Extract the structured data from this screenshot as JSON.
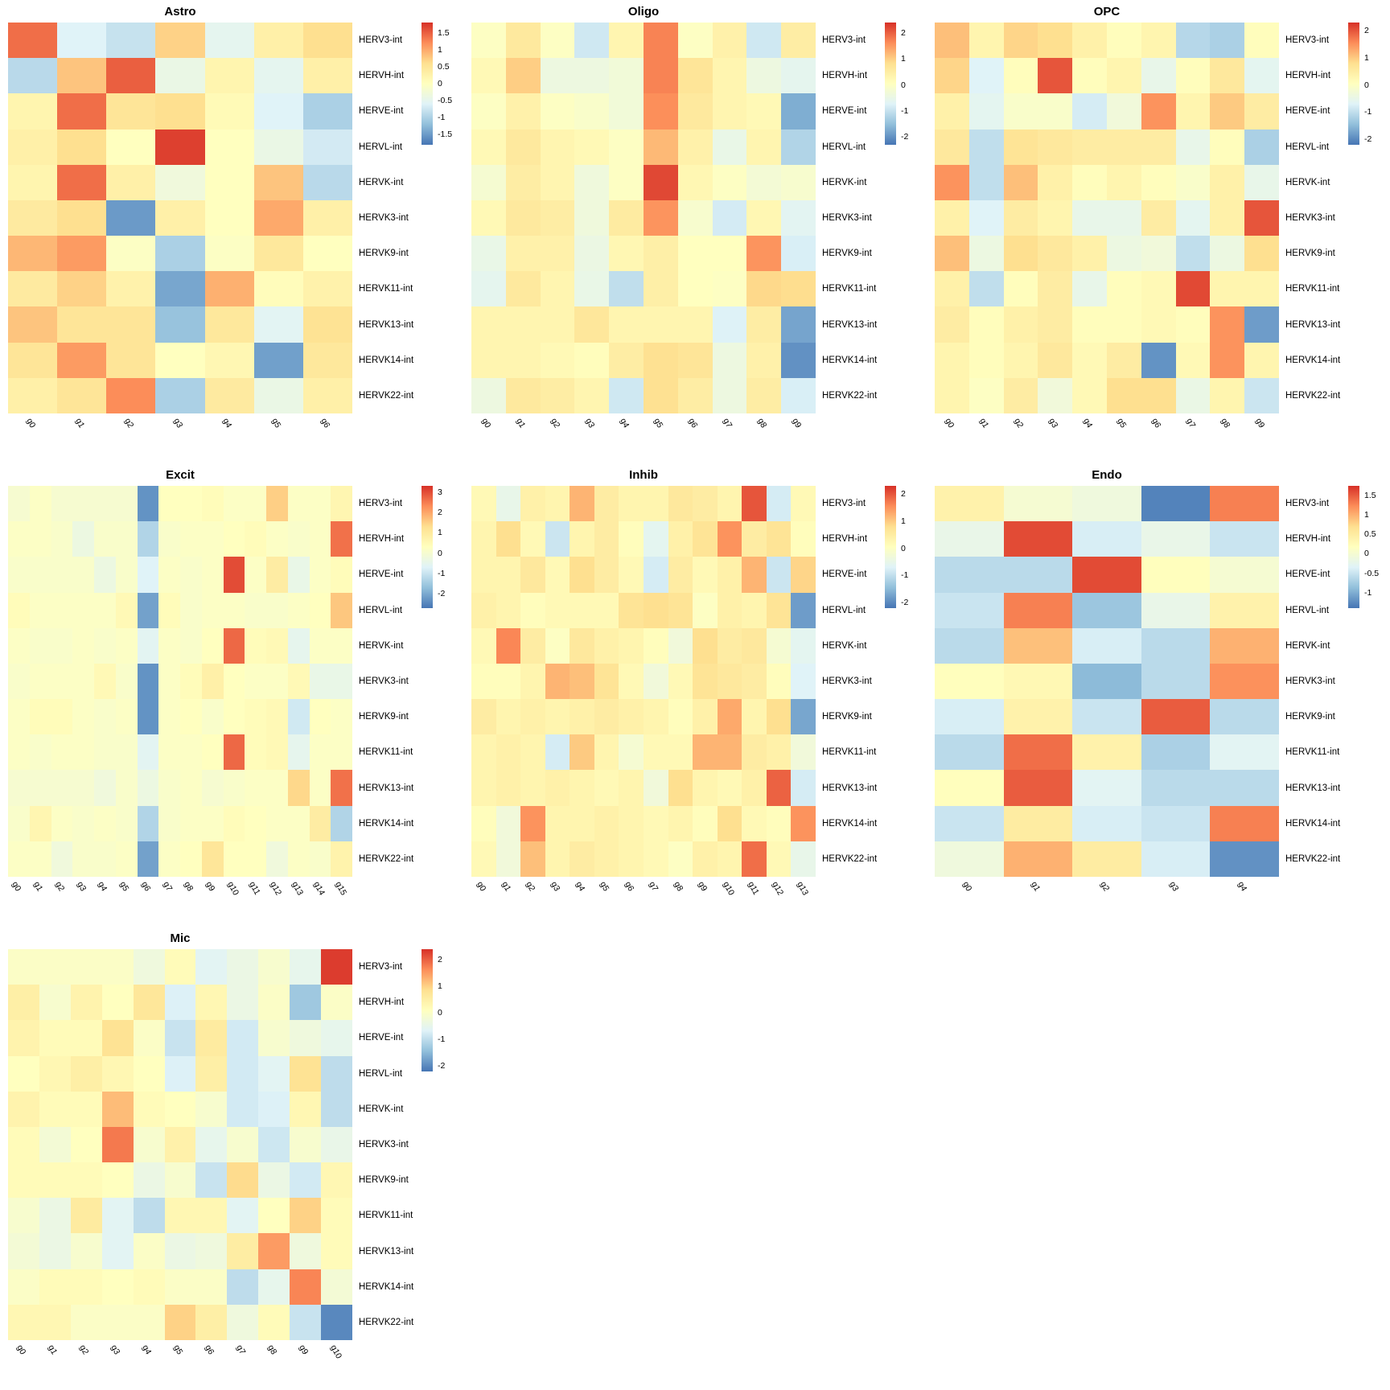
{
  "page": {
    "background": "#ffffff"
  },
  "colormap": {
    "name": "RdYlBu-reversed",
    "low_to_high_stops": [
      "#4575b4",
      "#91bfdb",
      "#e0f3f8",
      "#ffffbf",
      "#fee090",
      "#fc8d59",
      "#d73027"
    ]
  },
  "chart_data": [
    {
      "type": "heatmap",
      "title": "Astro",
      "columns": [
        "g0",
        "g1",
        "g2",
        "g3",
        "g4",
        "g5",
        "g6"
      ],
      "rows": [
        "HERV3-int",
        "HERVH-int",
        "HERVE-int",
        "HERVL-int",
        "HERVK-int",
        "HERVK3-int",
        "HERVK9-int",
        "HERVK11-int",
        "HERVK13-int",
        "HERVK14-int",
        "HERVK22-int"
      ],
      "legend_ticks": [
        "1.5",
        "1",
        "0.5",
        "0",
        "-0.5",
        "-1",
        "-1.5"
      ],
      "vmin": -1.8,
      "vmax": 1.8,
      "values": [
        [
          1.4,
          -0.6,
          -0.8,
          0.7,
          -0.5,
          0.3,
          0.6
        ],
        [
          -0.9,
          0.8,
          1.5,
          -0.4,
          0.2,
          -0.5,
          0.3
        ],
        [
          0.2,
          1.4,
          0.5,
          0.6,
          0.1,
          -0.6,
          -1.0
        ],
        [
          0.3,
          0.6,
          0.0,
          1.7,
          0.0,
          -0.4,
          -0.7
        ],
        [
          0.2,
          1.4,
          0.3,
          -0.3,
          0.0,
          0.8,
          -0.9
        ],
        [
          0.4,
          0.6,
          -1.5,
          0.3,
          0.0,
          1.0,
          0.3
        ],
        [
          0.9,
          1.1,
          -0.05,
          -1.0,
          -0.05,
          0.45,
          0.0
        ],
        [
          0.4,
          0.7,
          0.25,
          -1.4,
          0.95,
          0.05,
          0.25
        ],
        [
          0.8,
          0.5,
          0.5,
          -1.15,
          0.45,
          -0.55,
          0.55
        ],
        [
          0.5,
          1.1,
          0.5,
          0.0,
          0.15,
          -1.45,
          0.45
        ],
        [
          0.3,
          0.5,
          1.2,
          -1.0,
          0.4,
          -0.4,
          0.3
        ]
      ]
    },
    {
      "type": "heatmap",
      "title": "Oligo",
      "columns": [
        "g0",
        "g1",
        "g2",
        "g3",
        "g4",
        "g5",
        "g6",
        "g7",
        "g8",
        "g9"
      ],
      "rows": [
        "HERV3-int",
        "HERVH-int",
        "HERVE-int",
        "HERVL-int",
        "HERVK-int",
        "HERVK3-int",
        "HERVK9-int",
        "HERVK11-int",
        "HERVK13-int",
        "HERVK14-int",
        "HERVK22-int"
      ],
      "legend_ticks": [
        "2",
        "1",
        "0",
        "-1",
        "-2"
      ],
      "vmin": -2.3,
      "vmax": 2.4,
      "values": [
        [
          0.0,
          0.6,
          0.0,
          -0.9,
          0.3,
          1.7,
          0.0,
          0.4,
          -0.9,
          0.5
        ],
        [
          0.2,
          1.0,
          -0.4,
          -0.4,
          -0.3,
          1.7,
          0.7,
          0.3,
          -0.4,
          -0.6
        ],
        [
          0.0,
          0.4,
          0.0,
          -0.1,
          -0.3,
          1.6,
          0.6,
          0.3,
          0.2,
          -1.7
        ],
        [
          0.2,
          0.6,
          0.3,
          0.2,
          0.0,
          1.2,
          0.4,
          -0.5,
          0.3,
          -1.2
        ],
        [
          -0.2,
          0.5,
          0.3,
          -0.35,
          0.0,
          2.2,
          0.25,
          0.0,
          -0.25,
          -0.15
        ],
        [
          0.2,
          0.6,
          0.5,
          -0.35,
          0.55,
          1.55,
          -0.15,
          -0.85,
          0.25,
          -0.65
        ],
        [
          -0.5,
          0.4,
          0.4,
          -0.45,
          0.25,
          0.45,
          0.05,
          0.05,
          1.55,
          -0.8
        ],
        [
          -0.6,
          0.6,
          0.3,
          -0.5,
          -1.05,
          0.45,
          0.05,
          0.0,
          0.9,
          0.85
        ],
        [
          0.3,
          0.3,
          0.3,
          0.65,
          0.3,
          0.3,
          0.3,
          -0.75,
          0.5,
          -1.8
        ],
        [
          0.3,
          0.3,
          0.2,
          0.1,
          0.5,
          0.8,
          0.7,
          -0.4,
          0.4,
          -2.0
        ],
        [
          -0.4,
          0.6,
          0.5,
          0.3,
          -0.9,
          0.8,
          0.5,
          -0.4,
          0.5,
          -0.8
        ]
      ]
    },
    {
      "type": "heatmap",
      "title": "OPC",
      "columns": [
        "g0",
        "g1",
        "g2",
        "g3",
        "g4",
        "g5",
        "g6",
        "g7",
        "g8",
        "g9"
      ],
      "rows": [
        "HERV3-int",
        "HERVH-int",
        "HERVE-int",
        "HERVL-int",
        "HERVK-int",
        "HERVK3-int",
        "HERVK9-int",
        "HERVK11-int",
        "HERVK13-int",
        "HERVK14-int",
        "HERVK22-int"
      ],
      "legend_ticks": [
        "2",
        "1",
        "0",
        "-1",
        "-2"
      ],
      "vmin": -2.2,
      "vmax": 2.3,
      "values": [
        [
          1.1,
          0.3,
          0.9,
          0.8,
          0.4,
          0.1,
          0.3,
          -1.1,
          -1.2,
          0.1
        ],
        [
          0.9,
          -0.7,
          0.1,
          2.0,
          0.1,
          0.3,
          -0.5,
          0.1,
          0.6,
          -0.6
        ],
        [
          0.4,
          -0.6,
          -0.1,
          -0.1,
          -0.8,
          -0.3,
          1.5,
          0.3,
          1.0,
          0.5
        ],
        [
          0.6,
          -1.0,
          0.7,
          0.6,
          0.5,
          0.5,
          0.5,
          -0.5,
          0.1,
          -1.2
        ],
        [
          1.5,
          -1.0,
          1.1,
          0.4,
          0.1,
          0.3,
          0.1,
          -0.1,
          0.4,
          -0.5
        ],
        [
          0.4,
          -0.7,
          0.5,
          0.3,
          -0.5,
          -0.5,
          0.5,
          -0.6,
          0.4,
          2.0
        ],
        [
          1.1,
          -0.4,
          0.8,
          0.6,
          0.4,
          -0.4,
          -0.3,
          -1.0,
          -0.4,
          0.8
        ],
        [
          0.4,
          -1.0,
          0.1,
          0.5,
          -0.5,
          0.1,
          0.2,
          2.1,
          0.3,
          0.3
        ],
        [
          0.5,
          0.1,
          0.4,
          0.5,
          0.1,
          0.1,
          0.2,
          0.1,
          1.5,
          -1.8
        ],
        [
          0.3,
          0.1,
          0.3,
          0.6,
          0.2,
          0.5,
          -1.9,
          0.2,
          1.5,
          0.3
        ],
        [
          0.3,
          0.0,
          0.5,
          -0.3,
          0.2,
          0.8,
          0.8,
          -0.45,
          0.3,
          -0.9
        ]
      ]
    },
    {
      "type": "heatmap",
      "title": "Excit",
      "columns": [
        "g0",
        "g1",
        "g2",
        "g3",
        "g4",
        "g5",
        "g6",
        "g7",
        "g8",
        "g9",
        "g10",
        "g11",
        "g12",
        "g13",
        "g14",
        "g15"
      ],
      "rows": [
        "HERV3-int",
        "HERVH-int",
        "HERVE-int",
        "HERVL-int",
        "HERVK-int",
        "HERVK3-int",
        "HERVK9-int",
        "HERVK11-int",
        "HERVK13-int",
        "HERVK14-int",
        "HERVK22-int"
      ],
      "legend_ticks": [
        "3",
        "2",
        "1",
        "0",
        "-1",
        "-2"
      ],
      "vmin": -2.7,
      "vmax": 3.3,
      "values": [
        [
          0.0,
          0.2,
          0.0,
          0.0,
          0.0,
          0.0,
          -2.3,
          0.3,
          0.3,
          0.4,
          0.2,
          0.2,
          1.5,
          0.2,
          0.2,
          0.6
        ],
        [
          0.2,
          0.2,
          0.1,
          -0.3,
          0.1,
          0.1,
          -1.3,
          0.1,
          0.2,
          0.2,
          0.3,
          0.4,
          0.2,
          0.1,
          0.2,
          2.6
        ],
        [
          0.1,
          0.1,
          0.1,
          0.1,
          -0.3,
          0.1,
          -0.7,
          0.2,
          0.1,
          0.2,
          3.0,
          0.2,
          0.9,
          -0.4,
          0.2,
          0.4
        ],
        [
          0.4,
          0.2,
          0.2,
          0.2,
          0.2,
          0.5,
          -2.1,
          0.4,
          0.1,
          0.2,
          0.2,
          0.1,
          0.1,
          0.2,
          0.3,
          1.6
        ],
        [
          0.2,
          0.1,
          0.1,
          0.2,
          0.1,
          0.2,
          -0.6,
          0.2,
          0.1,
          0.3,
          2.7,
          0.4,
          0.5,
          -0.5,
          0.2,
          0.2
        ],
        [
          0.1,
          0.2,
          0.2,
          0.2,
          0.5,
          0.1,
          -2.3,
          0.2,
          0.4,
          0.8,
          0.3,
          0.2,
          0.2,
          0.5,
          -0.4,
          -0.4
        ],
        [
          0.2,
          0.4,
          0.4,
          0.2,
          0.1,
          0.2,
          -2.3,
          0.2,
          0.3,
          0.1,
          0.3,
          0.4,
          0.5,
          -0.9,
          0.3,
          0.2
        ],
        [
          0.2,
          0.1,
          0.2,
          0.2,
          0.1,
          0.1,
          -0.6,
          0.2,
          0.2,
          0.3,
          2.7,
          0.4,
          0.5,
          -0.5,
          0.2,
          0.2
        ],
        [
          0.0,
          0.0,
          0.0,
          0.0,
          -0.2,
          0.1,
          -0.3,
          0.1,
          0.2,
          0.0,
          0.1,
          0.2,
          0.2,
          1.4,
          0.2,
          2.6
        ],
        [
          0.1,
          0.6,
          0.2,
          0.1,
          0.2,
          0.1,
          -1.3,
          0.1,
          0.2,
          0.2,
          0.4,
          0.3,
          0.2,
          0.2,
          0.9,
          -1.3
        ],
        [
          0.2,
          0.2,
          -0.2,
          0.1,
          0.1,
          0.2,
          -2.1,
          0.2,
          0.3,
          1.1,
          0.3,
          0.3,
          -0.2,
          0.2,
          0.1,
          0.7
        ]
      ]
    },
    {
      "type": "heatmap",
      "title": "Inhib",
      "columns": [
        "g0",
        "g1",
        "g2",
        "g3",
        "g4",
        "g5",
        "g6",
        "g7",
        "g8",
        "g9",
        "g10",
        "g11",
        "g12",
        "g13"
      ],
      "rows": [
        "HERV3-int",
        "HERVH-int",
        "HERVE-int",
        "HERVL-int",
        "HERVK-int",
        "HERVK3-int",
        "HERVK9-int",
        "HERVK11-int",
        "HERVK13-int",
        "HERVK14-int",
        "HERVK22-int"
      ],
      "legend_ticks": [
        "2",
        "1",
        "0",
        "-1",
        "-2"
      ],
      "vmin": -2.2,
      "vmax": 2.3,
      "values": [
        [
          0.2,
          -0.5,
          0.4,
          0.3,
          1.2,
          0.5,
          0.3,
          0.3,
          0.6,
          0.5,
          0.3,
          2.0,
          -0.8,
          0.2
        ],
        [
          0.3,
          0.8,
          0.2,
          -0.9,
          0.3,
          0.5,
          0.1,
          -0.6,
          0.4,
          0.7,
          1.5,
          0.5,
          0.7,
          0.1
        ],
        [
          0.3,
          0.3,
          0.6,
          0.2,
          0.8,
          0.5,
          0.2,
          -0.8,
          0.5,
          0.2,
          0.4,
          1.2,
          -0.9,
          0.9
        ],
        [
          0.4,
          0.3,
          0.1,
          0.2,
          0.2,
          0.2,
          0.7,
          0.8,
          0.7,
          0.0,
          0.4,
          0.3,
          0.7,
          -1.8
        ],
        [
          0.2,
          1.6,
          0.5,
          0.0,
          0.6,
          0.4,
          0.3,
          0.1,
          -0.3,
          0.8,
          0.5,
          0.6,
          -0.2,
          -0.6
        ],
        [
          0.1,
          0.1,
          0.3,
          1.2,
          1.1,
          0.7,
          0.2,
          -0.3,
          0.2,
          0.7,
          0.6,
          0.5,
          0.1,
          -0.7
        ],
        [
          0.5,
          0.3,
          0.4,
          0.3,
          0.4,
          0.5,
          0.4,
          0.3,
          0.1,
          0.4,
          1.3,
          0.3,
          0.8,
          -1.7
        ],
        [
          0.3,
          0.4,
          0.3,
          -0.8,
          1.0,
          0.3,
          -0.2,
          0.2,
          0.2,
          1.2,
          1.2,
          0.5,
          0.4,
          -0.3
        ],
        [
          0.3,
          0.4,
          0.3,
          0.4,
          0.3,
          0.2,
          0.3,
          -0.3,
          0.8,
          0.3,
          0.2,
          0.4,
          1.9,
          -0.8
        ],
        [
          0.1,
          -0.3,
          1.5,
          0.3,
          0.3,
          0.4,
          0.3,
          0.2,
          0.3,
          0.1,
          0.8,
          0.2,
          0.1,
          1.5
        ],
        [
          0.2,
          -0.3,
          1.1,
          0.3,
          0.5,
          0.4,
          0.3,
          0.2,
          0.0,
          0.4,
          0.3,
          1.8,
          0.2,
          -0.5
        ]
      ]
    },
    {
      "type": "heatmap",
      "title": "Endo",
      "columns": [
        "g0",
        "g1",
        "g2",
        "g3",
        "g4"
      ],
      "rows": [
        "HERV3-int",
        "HERVH-int",
        "HERVE-int",
        "HERVL-int",
        "HERVK-int",
        "HERVK3-int",
        "HERVK9-int",
        "HERVK11-int",
        "HERVK13-int",
        "HERVK14-int",
        "HERVK22-int"
      ],
      "legend_ticks": [
        "1.5",
        "1",
        "0.5",
        "0",
        "-0.5",
        "-1"
      ],
      "vmin": -1.4,
      "vmax": 1.75,
      "values": [
        [
          0.4,
          0.0,
          -0.1,
          -1.3,
          1.3
        ],
        [
          -0.2,
          1.6,
          -0.4,
          -0.2,
          -0.5
        ],
        [
          -0.6,
          -0.6,
          1.6,
          0.2,
          0.0
        ],
        [
          -0.5,
          1.3,
          -0.8,
          -0.2,
          0.4
        ],
        [
          -0.6,
          0.9,
          -0.4,
          -0.6,
          1.0
        ],
        [
          0.2,
          0.3,
          -0.9,
          -0.6,
          1.2
        ],
        [
          -0.4,
          0.4,
          -0.5,
          1.5,
          -0.6
        ],
        [
          -0.6,
          1.4,
          0.4,
          -0.7,
          -0.3
        ],
        [
          0.2,
          1.5,
          -0.3,
          -0.6,
          -0.6
        ],
        [
          -0.5,
          0.5,
          -0.4,
          -0.5,
          1.3
        ],
        [
          -0.1,
          1.0,
          0.5,
          -0.4,
          -1.2
        ]
      ]
    },
    {
      "type": "heatmap",
      "title": "Mic",
      "columns": [
        "g0",
        "g1",
        "g2",
        "g3",
        "g4",
        "g5",
        "g6",
        "g7",
        "g8",
        "g9",
        "g10"
      ],
      "rows": [
        "HERV3-int",
        "HERVH-int",
        "HERVE-int",
        "HERVL-int",
        "HERVK-int",
        "HERVK3-int",
        "HERVK9-int",
        "HERVK11-int",
        "HERVK13-int",
        "HERVK14-int",
        "HERVK22-int"
      ],
      "legend_ticks": [
        "2",
        "1",
        "0",
        "-1",
        "-2"
      ],
      "vmin": -2.2,
      "vmax": 2.4,
      "values": [
        [
          0.0,
          0.0,
          0.0,
          0.0,
          -0.3,
          0.2,
          -0.6,
          -0.4,
          -0.1,
          -0.5,
          2.3
        ],
        [
          0.5,
          -0.1,
          0.4,
          0.1,
          0.7,
          -0.7,
          0.3,
          -0.4,
          0.0,
          -1.3,
          0.0
        ],
        [
          0.4,
          0.2,
          0.2,
          0.8,
          0.0,
          -0.9,
          0.6,
          -0.8,
          -0.1,
          -0.3,
          -0.5
        ],
        [
          0.1,
          0.3,
          0.5,
          0.3,
          0.1,
          -0.7,
          0.5,
          -0.8,
          -0.6,
          0.8,
          -1.0
        ],
        [
          0.4,
          0.2,
          0.2,
          1.2,
          0.2,
          0.1,
          -0.1,
          -0.8,
          -0.7,
          0.3,
          -1.0
        ],
        [
          0.2,
          -0.2,
          0.1,
          1.8,
          -0.1,
          0.45,
          -0.5,
          -0.1,
          -0.85,
          -0.1,
          -0.45
        ],
        [
          0.2,
          0.2,
          0.2,
          0.1,
          -0.4,
          -0.1,
          -0.9,
          0.9,
          -0.4,
          -0.8,
          0.3
        ],
        [
          -0.1,
          -0.4,
          0.6,
          -0.6,
          -1.0,
          0.3,
          0.3,
          -0.6,
          0.1,
          1.0,
          0.2
        ],
        [
          -0.2,
          -0.4,
          -0.1,
          -0.6,
          0.0,
          -0.4,
          -0.3,
          0.55,
          1.5,
          -0.3,
          0.2
        ],
        [
          0.0,
          0.2,
          0.2,
          0.1,
          0.2,
          0.0,
          0.0,
          -1.0,
          -0.5,
          1.7,
          -0.2
        ],
        [
          0.3,
          0.3,
          0.0,
          0.0,
          0.0,
          1.0,
          0.5,
          -0.3,
          0.2,
          -0.9,
          -2.0
        ]
      ]
    }
  ]
}
